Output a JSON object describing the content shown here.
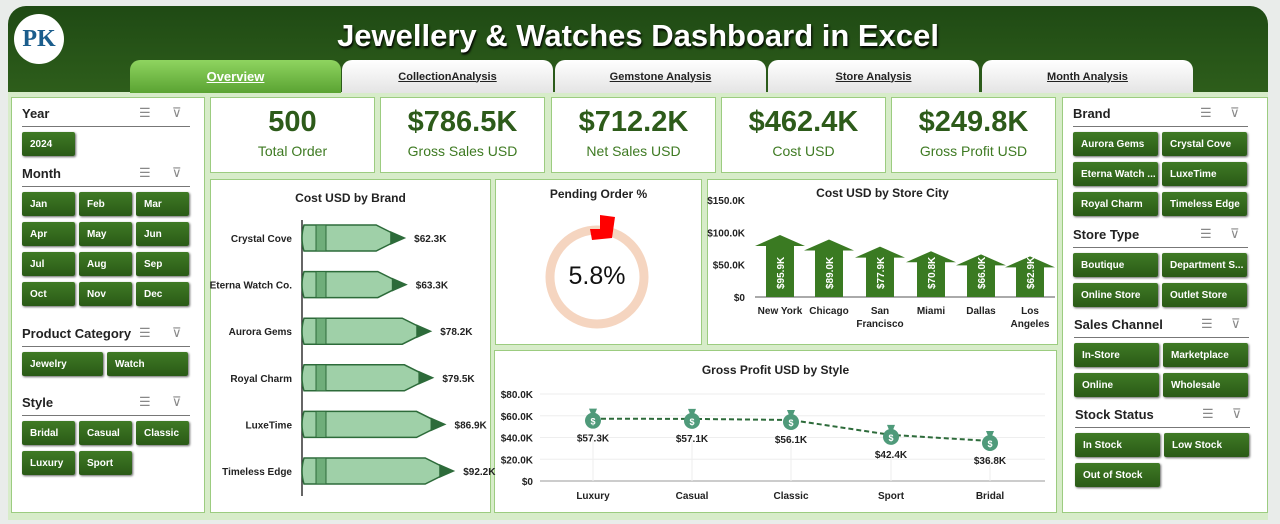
{
  "header": {
    "title": "Jewellery & Watches Dashboard in Excel",
    "logo_text": "PK"
  },
  "tabs": [
    {
      "label": "Overview",
      "active": true
    },
    {
      "label": "CollectionAnalysis"
    },
    {
      "label": "Gemstone Analysis"
    },
    {
      "label": "Store Analysis"
    },
    {
      "label": "Month Analysis"
    }
  ],
  "left_slicers": {
    "year": {
      "title": "Year",
      "items": [
        "2024"
      ]
    },
    "month": {
      "title": "Month",
      "items": [
        "Jan",
        "Feb",
        "Mar",
        "Apr",
        "May",
        "Jun",
        "Jul",
        "Aug",
        "Sep",
        "Oct",
        "Nov",
        "Dec"
      ]
    },
    "category": {
      "title": "Product Category",
      "items": [
        "Jewelry",
        "Watch"
      ]
    },
    "style": {
      "title": "Style",
      "items": [
        "Bridal",
        "Casual",
        "Classic",
        "Luxury",
        "Sport"
      ]
    }
  },
  "right_slicers": {
    "brand": {
      "title": "Brand",
      "items": [
        "Aurora Gems",
        "Crystal Cove",
        "Eterna Watch ...",
        "LuxeTime",
        "Royal Charm",
        "Timeless Edge"
      ]
    },
    "store_type": {
      "title": "Store Type",
      "items": [
        "Boutique",
        "Department S...",
        "Online Store",
        "Outlet Store"
      ]
    },
    "channel": {
      "title": "Sales Channel",
      "items": [
        "In-Store",
        "Marketplace",
        "Online",
        "Wholesale"
      ]
    },
    "stock": {
      "title": "Stock Status",
      "items": [
        "In Stock",
        "Low Stock",
        "Out of Stock"
      ]
    }
  },
  "kpis": [
    {
      "value": "500",
      "label": "Total Order"
    },
    {
      "value": "$786.5K",
      "label": "Gross Sales USD"
    },
    {
      "value": "$712.2K",
      "label": "Net Sales USD"
    },
    {
      "value": "$462.4K",
      "label": "Cost USD"
    },
    {
      "value": "$249.8K",
      "label": "Gross Profit USD"
    }
  ],
  "pending": {
    "title": "Pending Order %",
    "value": "5.8%",
    "fraction": 0.058
  },
  "colors": {
    "dark_green": "#2d5b1a",
    "accent": "#3e7a22",
    "ring": "#f5d5c0",
    "pointer": "#ff0000"
  },
  "chart_data": [
    {
      "type": "bar",
      "orientation": "horizontal",
      "title": "Cost USD by Brand",
      "categories": [
        "Crystal Cove",
        "Eterna Watch Co.",
        "Aurora Gems",
        "Royal Charm",
        "LuxeTime",
        "Timeless Edge"
      ],
      "values": [
        62.3,
        63.3,
        78.2,
        79.5,
        86.9,
        92.2
      ],
      "labels": [
        "$62.3K",
        "$63.3K",
        "$78.2K",
        "$79.5K",
        "$86.9K",
        "$92.2K"
      ],
      "unit": "K USD"
    },
    {
      "type": "bar",
      "title": "Cost USD by Store City",
      "categories": [
        "New York",
        "Chicago",
        "San Francisco",
        "Miami",
        "Dallas",
        "Los Angeles"
      ],
      "values": [
        95.9,
        89.0,
        77.9,
        70.8,
        66.0,
        62.9
      ],
      "labels": [
        "$95.9K",
        "$89.0K",
        "$77.9K",
        "$70.8K",
        "$66.0K",
        "$62.9K"
      ],
      "yticks": [
        "$0",
        "$50.0K",
        "$100.0K",
        "$150.0K"
      ],
      "ylim": [
        0,
        150
      ],
      "unit": "K USD"
    },
    {
      "type": "line",
      "title": "Gross Profit USD by Style",
      "categories": [
        "Luxury",
        "Casual",
        "Classic",
        "Sport",
        "Bridal"
      ],
      "values": [
        57.3,
        57.1,
        56.1,
        42.4,
        36.8
      ],
      "labels": [
        "$57.3K",
        "$57.1K",
        "$56.1K",
        "$42.4K",
        "$36.8K"
      ],
      "yticks": [
        "$0",
        "$20.0K",
        "$40.0K",
        "$60.0K",
        "$80.0K"
      ],
      "ylim": [
        0,
        80
      ],
      "unit": "K USD"
    }
  ]
}
